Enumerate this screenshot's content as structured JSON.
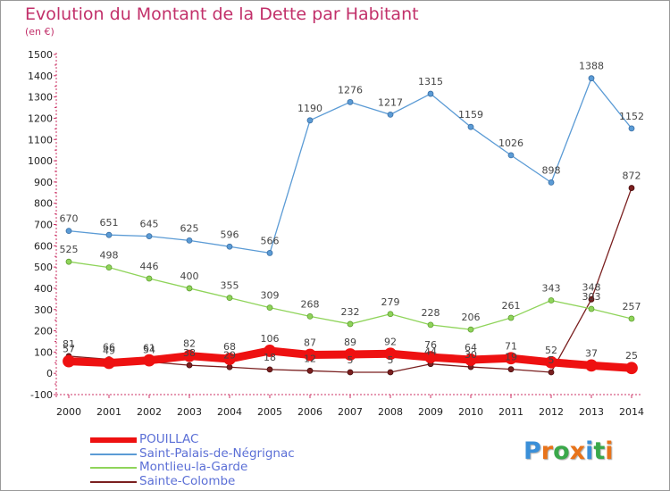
{
  "title": "Evolution du Montant de la Dette par Habitant",
  "subtitle": "(en €)",
  "brand": "Proxiti",
  "chart_data": {
    "type": "line",
    "x": [
      "2000",
      "2001",
      "2002",
      "2003",
      "2004",
      "2005",
      "2006",
      "2007",
      "2008",
      "2009",
      "2010",
      "2011",
      "2012",
      "2013",
      "2014"
    ],
    "ylim": [
      -100,
      1500
    ],
    "ytick_step": 100,
    "grid": false,
    "legend_placement": "bottom-left",
    "series": [
      {
        "name": "POUILLAC",
        "color": "#ee1111",
        "values": [
          57,
          49,
          61,
          82,
          68,
          106,
          87,
          89,
          92,
          76,
          64,
          71,
          52,
          37,
          25
        ],
        "labels": [
          "57",
          "49",
          "61",
          "82",
          "68",
          "106",
          "87",
          "89",
          "92",
          "76",
          "64",
          "71",
          "52",
          "37",
          "25"
        ]
      },
      {
        "name": "Saint-Palais-de-Négrignac",
        "color": "#5b9bd5",
        "values": [
          670,
          651,
          645,
          625,
          596,
          566,
          1190,
          1276,
          1217,
          1315,
          1159,
          1026,
          898,
          1388,
          1152
        ],
        "labels": [
          "670",
          "651",
          "645",
          "625",
          "596",
          "566",
          "1190",
          "1276",
          "1217",
          "1315",
          "1159",
          "1026",
          "898",
          "1388",
          "1152"
        ]
      },
      {
        "name": "Montlieu-la-Garde",
        "color": "#8fd45a",
        "values": [
          525,
          498,
          446,
          400,
          355,
          309,
          268,
          232,
          279,
          228,
          206,
          261,
          343,
          303,
          257
        ],
        "labels": [
          "525",
          "498",
          "446",
          "400",
          "355",
          "309",
          "268",
          "232",
          "279",
          "228",
          "206",
          "261",
          "343",
          "303",
          "257"
        ]
      },
      {
        "name": "Sainte-Colombe",
        "color": "#7a1f1f",
        "values": [
          81,
          66,
          54,
          38,
          29,
          18,
          12,
          5,
          5,
          44,
          30,
          19,
          5,
          348,
          872
        ],
        "labels": [
          "81",
          "66",
          "54",
          "38",
          "29",
          "18",
          "12",
          "5",
          "5",
          "44",
          "30",
          "19",
          "5",
          "348",
          "872"
        ]
      }
    ]
  },
  "legend": [
    {
      "label": "POUILLAC",
      "color": "#ee1111"
    },
    {
      "label": "Saint-Palais-de-Négrignac",
      "color": "#5b9bd5"
    },
    {
      "label": "Montlieu-la-Garde",
      "color": "#8fd45a"
    },
    {
      "label": "Sainte-Colombe",
      "color": "#7a1f1f"
    }
  ]
}
